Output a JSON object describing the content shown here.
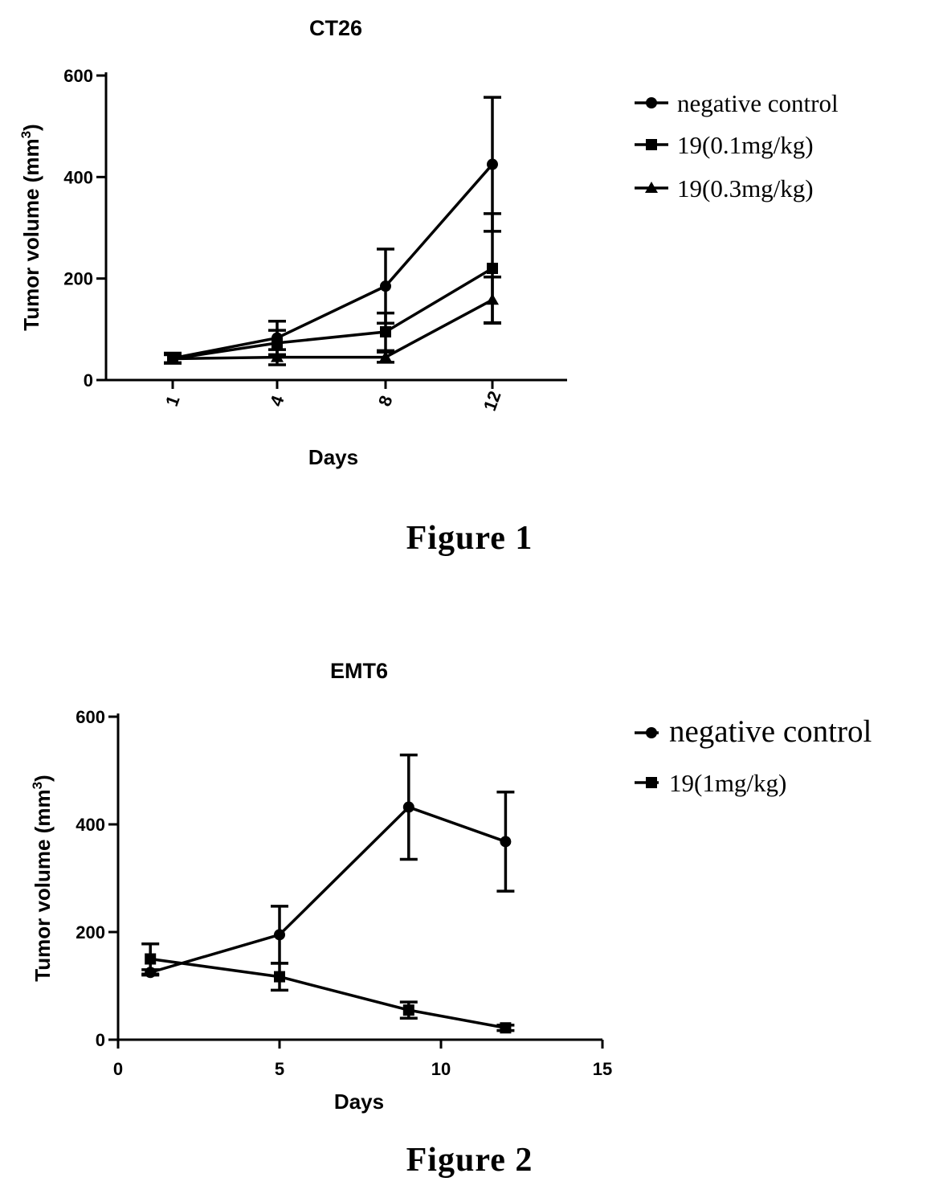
{
  "chart_data": [
    {
      "type": "line",
      "title": "CT26",
      "xlabel": "Days",
      "ylabel": "Tumor volume (mm",
      "ylabel_sup": "3",
      "ylabel_close": ")",
      "x_categorical": true,
      "categories": [
        "1",
        "4",
        "8",
        "12"
      ],
      "ylim": [
        0,
        600
      ],
      "yticks": [
        0,
        200,
        400,
        600
      ],
      "legend": "right",
      "series": [
        {
          "name": "negative control",
          "marker": "circle",
          "values": [
            43,
            83,
            185,
            425
          ],
          "errors": [
            10,
            33,
            73,
            132
          ]
        },
        {
          "name": "19(0.1mg/kg)",
          "marker": "square",
          "values": [
            42,
            73,
            95,
            220
          ],
          "errors": [
            8,
            25,
            37,
            108
          ]
        },
        {
          "name": "19(0.3mg/kg)",
          "marker": "triangle",
          "values": [
            42,
            45,
            45,
            158
          ],
          "errors": [
            8,
            15,
            10,
            45
          ]
        }
      ]
    },
    {
      "type": "line",
      "title": "EMT6",
      "xlabel": "Days",
      "ylabel": "Tumor volume (mm",
      "ylabel_sup": "3",
      "ylabel_close": ")",
      "x_categorical": false,
      "xlim": [
        0,
        15
      ],
      "xticks": [
        0,
        5,
        10,
        15
      ],
      "ylim": [
        0,
        600
      ],
      "yticks": [
        0,
        200,
        400,
        600
      ],
      "legend": "right",
      "series": [
        {
          "name": "negative control",
          "marker": "circle",
          "x": [
            1,
            5,
            9,
            12
          ],
          "values": [
            125,
            195,
            432,
            368
          ],
          "errors": [
            5,
            53,
            97,
            92
          ]
        },
        {
          "name": "19(1mg/kg)",
          "marker": "square",
          "x": [
            1,
            5,
            9,
            12
          ],
          "values": [
            150,
            117,
            55,
            22
          ],
          "errors": [
            28,
            25,
            15,
            5
          ]
        }
      ]
    }
  ],
  "captions": {
    "figure1": "Figure 1",
    "figure2": "Figure 2"
  }
}
